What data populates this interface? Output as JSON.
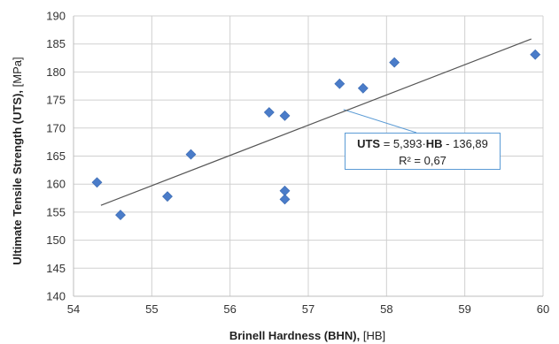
{
  "chart_data": {
    "type": "scatter",
    "xlabel": {
      "main": "Brinell Hardness (BHN), ",
      "unit": "[HB]"
    },
    "ylabel": {
      "main": "Ultimate Tensile Strength (UTS), ",
      "unit": "[MPa]"
    },
    "xlim": [
      54,
      60
    ],
    "ylim": [
      140,
      190
    ],
    "xticks": [
      "54",
      "55",
      "56",
      "57",
      "58",
      "59",
      "60"
    ],
    "yticks": [
      "140",
      "145",
      "150",
      "155",
      "160",
      "165",
      "170",
      "175",
      "180",
      "185",
      "190"
    ],
    "grid": true,
    "series": [
      {
        "marker": "diamond",
        "color": "#4a7cc9",
        "points": [
          [
            54.3,
            160.3
          ],
          [
            54.6,
            154.5
          ],
          [
            55.2,
            157.8
          ],
          [
            55.5,
            165.3
          ],
          [
            56.5,
            172.8
          ],
          [
            56.7,
            172.2
          ],
          [
            56.7,
            158.8
          ],
          [
            56.7,
            157.3
          ],
          [
            57.4,
            177.9
          ],
          [
            57.7,
            177.1
          ],
          [
            58.1,
            181.7
          ],
          [
            59.9,
            183.1
          ]
        ]
      }
    ],
    "trendline": {
      "slope": 5.393,
      "intercept": -136.89,
      "x_range": [
        54.35,
        59.85
      ],
      "color": "#555555"
    },
    "annotation": {
      "eq_lhs": "UTS",
      "eq_mid": " = 5,393·",
      "eq_var": "HB",
      "eq_rhs": " - 136,89",
      "r2": "R² = 0,67",
      "anchor": [
        57.45,
        173.3
      ]
    }
  }
}
